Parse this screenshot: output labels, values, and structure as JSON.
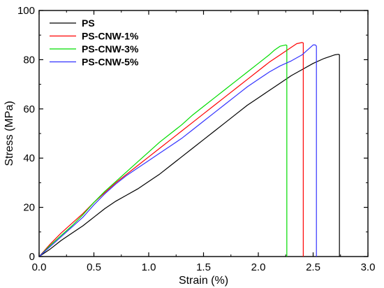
{
  "chart_data": {
    "type": "line",
    "title": "",
    "xlabel": "Strain (%)",
    "ylabel": "Stress (MPa)",
    "xlim": [
      0.0,
      3.0
    ],
    "ylim": [
      0,
      100
    ],
    "xticks": [
      0.0,
      0.5,
      1.0,
      1.5,
      2.0,
      2.5,
      3.0
    ],
    "xtick_labels": [
      "0.0",
      "0.5",
      "1.0",
      "1.5",
      "2.0",
      "2.5",
      "3.0"
    ],
    "yticks": [
      0,
      20,
      40,
      60,
      80,
      100
    ],
    "ytick_labels": [
      "0",
      "20",
      "40",
      "60",
      "80",
      "100"
    ],
    "grid": false,
    "legend_position": "top-left",
    "series": [
      {
        "name": "PS",
        "color": "#000000",
        "x": [
          0.0,
          0.1,
          0.2,
          0.3,
          0.4,
          0.5,
          0.6,
          0.7,
          0.8,
          0.9,
          1.0,
          1.1,
          1.2,
          1.3,
          1.4,
          1.5,
          1.6,
          1.7,
          1.8,
          1.9,
          2.0,
          2.1,
          2.2,
          2.3,
          2.4,
          2.5,
          2.6,
          2.7,
          2.73,
          2.74,
          2.74
        ],
        "y": [
          0,
          3,
          6.5,
          9.5,
          12.5,
          16,
          19.5,
          22.5,
          25,
          27.5,
          30.5,
          33.5,
          37,
          40.5,
          44,
          47.5,
          51,
          54.5,
          58,
          61.5,
          64.5,
          67.5,
          70.5,
          73.5,
          76,
          78.5,
          80.5,
          82,
          82.2,
          82,
          0
        ]
      },
      {
        "name": "PS-CNW-1%",
        "color": "#ff0000",
        "x": [
          0.0,
          0.1,
          0.2,
          0.3,
          0.4,
          0.5,
          0.6,
          0.7,
          0.8,
          0.9,
          1.0,
          1.1,
          1.2,
          1.3,
          1.4,
          1.5,
          1.6,
          1.7,
          1.8,
          1.9,
          2.0,
          2.1,
          2.2,
          2.3,
          2.35,
          2.4,
          2.41,
          2.41
        ],
        "y": [
          0,
          5,
          9.5,
          13.5,
          17.5,
          22,
          26,
          30,
          33.5,
          37,
          40.5,
          44,
          47.5,
          51,
          54.5,
          58,
          61.5,
          65,
          68.5,
          72,
          75.5,
          79,
          82,
          85,
          86.5,
          87,
          86.8,
          0
        ]
      },
      {
        "name": "PS-CNW-3%",
        "color": "#00dd00",
        "x": [
          0.0,
          0.1,
          0.2,
          0.3,
          0.4,
          0.5,
          0.6,
          0.7,
          0.8,
          0.9,
          1.0,
          1.1,
          1.2,
          1.3,
          1.4,
          1.5,
          1.6,
          1.7,
          1.8,
          1.9,
          2.0,
          2.1,
          2.15,
          2.2,
          2.25,
          2.26,
          2.26
        ],
        "y": [
          0,
          4.5,
          8.5,
          12.5,
          17,
          22,
          26.5,
          30.5,
          34.5,
          38.5,
          42.5,
          46.5,
          50,
          53.5,
          57.5,
          61,
          64.5,
          68,
          71.5,
          75,
          78.5,
          82,
          84,
          85.5,
          86,
          85.8,
          0
        ]
      },
      {
        "name": "PS-CNW-5%",
        "color": "#3333ff",
        "x": [
          0.0,
          0.1,
          0.2,
          0.3,
          0.4,
          0.5,
          0.6,
          0.7,
          0.8,
          0.9,
          1.0,
          1.1,
          1.2,
          1.3,
          1.4,
          1.5,
          1.6,
          1.7,
          1.8,
          1.9,
          2.0,
          2.1,
          2.2,
          2.3,
          2.4,
          2.45,
          2.5,
          2.52,
          2.53,
          2.53
        ],
        "y": [
          0,
          4,
          8,
          12,
          16,
          21,
          25.5,
          29.5,
          33,
          36,
          39,
          42,
          45,
          48,
          51.5,
          55,
          58.5,
          62,
          65.5,
          69,
          72,
          75,
          77.5,
          79.5,
          82,
          84,
          86,
          86,
          85.5,
          0
        ]
      }
    ]
  }
}
